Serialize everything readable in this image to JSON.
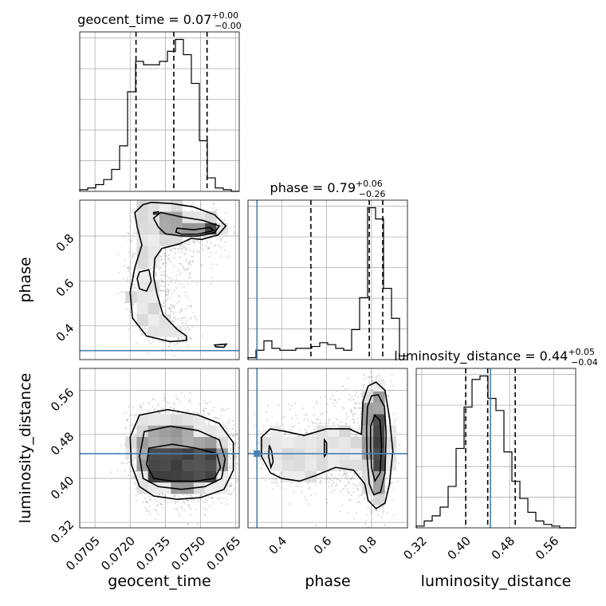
{
  "chart_data": {
    "type": "corner",
    "parameters": [
      "geocent_time",
      "phase",
      "luminosity_distance"
    ],
    "axis_labels": {
      "geocent_time": "geocent_time",
      "phase": "phase",
      "luminosity_distance": "luminosity_distance"
    },
    "truths": {
      "geocent_time": null,
      "phase": 0.29,
      "luminosity_distance": 0.445
    },
    "ranges": {
      "geocent_time": [
        0.06985,
        0.07665
      ],
      "phase": [
        0.25,
        0.96
      ],
      "luminosity_distance": [
        0.31,
        0.6
      ]
    },
    "ticks": {
      "geocent_time": {
        "values": [
          0.0705,
          0.072,
          0.0735,
          0.075,
          0.0765
        ],
        "labels": [
          "0.0705",
          "0.0720",
          "0.0735",
          "0.0750",
          "0.0765"
        ]
      },
      "phase": {
        "values": [
          0.4,
          0.6,
          0.8
        ],
        "labels": [
          "0.4",
          "0.6",
          "0.8"
        ]
      },
      "luminosity_distance": {
        "values": [
          0.32,
          0.4,
          0.48,
          0.56
        ],
        "labels": [
          "0.32",
          "0.40",
          "0.48",
          "0.56"
        ]
      }
    },
    "titles": {
      "geocent_time": {
        "prefix": "geocent_time = 0.07",
        "plus": "+0.00",
        "minus": "−0.00"
      },
      "phase": {
        "prefix": "phase = 0.79",
        "plus": "+0.06",
        "minus": "−0.26"
      },
      "luminosity_distance": {
        "prefix": "luminosity_distance = 0.44",
        "plus": "+0.05",
        "minus": "−0.04"
      }
    },
    "histograms": {
      "geocent_time": {
        "edges": [
          0.06985,
          0.07019,
          0.07053,
          0.07087,
          0.07121,
          0.07155,
          0.07189,
          0.07223,
          0.07257,
          0.07291,
          0.07325,
          0.07359,
          0.07393,
          0.07427,
          0.07461,
          0.07495,
          0.07529,
          0.07563,
          0.07597,
          0.07631,
          0.07665
        ],
        "counts": [
          1,
          2,
          4,
          7,
          13,
          27,
          59,
          77,
          75,
          75,
          77,
          83,
          90,
          81,
          64,
          30,
          8,
          2,
          1,
          0
        ],
        "quantiles": [
          0.07225,
          0.07386,
          0.07528
        ]
      },
      "phase": {
        "edges": [
          0.25,
          0.2855,
          0.321,
          0.3565,
          0.392,
          0.4275,
          0.463,
          0.4985,
          0.534,
          0.5695,
          0.605,
          0.6405,
          0.676,
          0.7115,
          0.747,
          0.7825,
          0.818,
          0.8535,
          0.889,
          0.9245,
          0.96
        ],
        "counts": [
          1,
          5,
          10,
          6,
          5,
          5,
          6,
          6,
          7,
          9,
          8,
          6,
          5,
          16,
          33,
          81,
          75,
          38,
          22,
          2
        ],
        "quantiles": [
          0.53,
          0.79,
          0.85
        ]
      },
      "luminosity_distance": {
        "edges": [
          0.31,
          0.3245,
          0.339,
          0.3535,
          0.368,
          0.3825,
          0.397,
          0.4115,
          0.426,
          0.4405,
          0.455,
          0.4695,
          0.484,
          0.4985,
          0.513,
          0.5275,
          0.542,
          0.5565,
          0.571,
          0.5855,
          0.6
        ],
        "counts": [
          1,
          4,
          7,
          12,
          24,
          46,
          70,
          86,
          88,
          75,
          68,
          44,
          27,
          17,
          9,
          4,
          2,
          1,
          0,
          0
        ],
        "quantiles": [
          0.4,
          0.44,
          0.49
        ]
      }
    },
    "contours": {
      "phase_vs_geocent_time": [
        [
          [
            0.0729,
            0.95
          ],
          [
            0.07375,
            0.945
          ],
          [
            0.0747,
            0.93
          ],
          [
            0.0756,
            0.895
          ],
          [
            0.07608,
            0.845
          ],
          [
            0.07575,
            0.805
          ],
          [
            0.07505,
            0.785
          ],
          [
            0.0746,
            0.79
          ],
          [
            0.0741,
            0.765
          ],
          [
            0.07335,
            0.745
          ],
          [
            0.07305,
            0.7
          ],
          [
            0.073,
            0.62
          ],
          [
            0.07315,
            0.54
          ],
          [
            0.0734,
            0.45
          ],
          [
            0.074,
            0.385
          ],
          [
            0.0744,
            0.355
          ],
          [
            0.0744,
            0.335
          ],
          [
            0.0737,
            0.33
          ],
          [
            0.0727,
            0.355
          ],
          [
            0.0721,
            0.435
          ],
          [
            0.072,
            0.55
          ],
          [
            0.0722,
            0.66
          ],
          [
            0.0725,
            0.76
          ],
          [
            0.0723,
            0.84
          ],
          [
            0.0722,
            0.905
          ],
          [
            0.07255,
            0.94
          ]
        ],
        [
          [
            0.0733,
            0.905
          ],
          [
            0.0742,
            0.885
          ],
          [
            0.0751,
            0.87
          ],
          [
            0.0758,
            0.845
          ],
          [
            0.0756,
            0.815
          ],
          [
            0.0749,
            0.8
          ],
          [
            0.0742,
            0.8
          ],
          [
            0.0735,
            0.81
          ],
          [
            0.0732,
            0.84
          ],
          [
            0.073,
            0.88
          ]
        ],
        [
          [
            0.074,
            0.835
          ],
          [
            0.0747,
            0.828
          ],
          [
            0.0754,
            0.838
          ],
          [
            0.07555,
            0.825
          ],
          [
            0.0749,
            0.808
          ],
          [
            0.0742,
            0.808
          ],
          [
            0.07395,
            0.818
          ]
        ],
        [
          [
            0.0724,
            0.64
          ],
          [
            0.0728,
            0.65
          ],
          [
            0.0729,
            0.6
          ],
          [
            0.0727,
            0.555
          ],
          [
            0.0724,
            0.565
          ],
          [
            0.0723,
            0.61
          ]
        ],
        [
          [
            0.073,
            0.905
          ],
          [
            0.0732,
            0.908
          ],
          [
            0.0732,
            0.899
          ],
          [
            0.073,
            0.898
          ]
        ],
        [
          [
            0.0756,
            0.315
          ],
          [
            0.0761,
            0.319
          ],
          [
            0.076,
            0.305
          ],
          [
            0.07565,
            0.307
          ]
        ]
      ],
      "luminosity_distance_vs_geocent_time": [
        [
          [
            0.0724,
            0.515
          ],
          [
            0.0736,
            0.525
          ],
          [
            0.0749,
            0.515
          ],
          [
            0.0758,
            0.5
          ],
          [
            0.0764,
            0.465
          ],
          [
            0.0764,
            0.415
          ],
          [
            0.076,
            0.38
          ],
          [
            0.075,
            0.365
          ],
          [
            0.074,
            0.362
          ],
          [
            0.073,
            0.368
          ],
          [
            0.0724,
            0.385
          ],
          [
            0.07205,
            0.425
          ],
          [
            0.072,
            0.475
          ]
        ],
        [
          [
            0.0726,
            0.485
          ],
          [
            0.0737,
            0.495
          ],
          [
            0.0749,
            0.487
          ],
          [
            0.0758,
            0.47
          ],
          [
            0.07605,
            0.435
          ],
          [
            0.0759,
            0.4
          ],
          [
            0.0752,
            0.385
          ],
          [
            0.0742,
            0.38
          ],
          [
            0.0732,
            0.385
          ],
          [
            0.07255,
            0.4
          ],
          [
            0.0724,
            0.44
          ]
        ],
        [
          [
            0.0728,
            0.455
          ],
          [
            0.0738,
            0.462
          ],
          [
            0.0748,
            0.455
          ],
          [
            0.0757,
            0.445
          ],
          [
            0.07585,
            0.42
          ],
          [
            0.0756,
            0.4
          ],
          [
            0.0748,
            0.395
          ],
          [
            0.0738,
            0.395
          ],
          [
            0.073,
            0.4
          ],
          [
            0.0727,
            0.425
          ]
        ]
      ],
      "luminosity_distance_vs_phase": [
        [
          [
            0.762,
            0.54
          ],
          [
            0.785,
            0.568
          ],
          [
            0.82,
            0.575
          ],
          [
            0.86,
            0.56
          ],
          [
            0.88,
            0.51
          ],
          [
            0.895,
            0.45
          ],
          [
            0.88,
            0.39
          ],
          [
            0.86,
            0.355
          ],
          [
            0.82,
            0.345
          ],
          [
            0.785,
            0.36
          ],
          [
            0.77,
            0.39
          ],
          [
            0.72,
            0.415
          ],
          [
            0.64,
            0.42
          ],
          [
            0.55,
            0.405
          ],
          [
            0.48,
            0.395
          ],
          [
            0.4,
            0.4
          ],
          [
            0.35,
            0.41
          ],
          [
            0.31,
            0.44
          ],
          [
            0.31,
            0.475
          ],
          [
            0.35,
            0.49
          ],
          [
            0.42,
            0.485
          ],
          [
            0.5,
            0.478
          ],
          [
            0.6,
            0.49
          ],
          [
            0.7,
            0.49
          ],
          [
            0.755,
            0.48
          ]
        ],
        [
          [
            0.782,
            0.53
          ],
          [
            0.8,
            0.55
          ],
          [
            0.83,
            0.552
          ],
          [
            0.858,
            0.53
          ],
          [
            0.865,
            0.48
          ],
          [
            0.86,
            0.41
          ],
          [
            0.84,
            0.375
          ],
          [
            0.81,
            0.37
          ],
          [
            0.79,
            0.39
          ],
          [
            0.78,
            0.44
          ],
          [
            0.778,
            0.49
          ]
        ],
        [
          [
            0.796,
            0.495
          ],
          [
            0.815,
            0.515
          ],
          [
            0.838,
            0.505
          ],
          [
            0.845,
            0.46
          ],
          [
            0.838,
            0.41
          ],
          [
            0.815,
            0.395
          ],
          [
            0.8,
            0.42
          ],
          [
            0.796,
            0.46
          ]
        ],
        [
          [
            0.345,
            0.46
          ],
          [
            0.355,
            0.45
          ],
          [
            0.362,
            0.43
          ],
          [
            0.352,
            0.42
          ],
          [
            0.342,
            0.44
          ]
        ],
        [
          [
            0.59,
            0.47
          ],
          [
            0.6,
            0.465
          ],
          [
            0.6,
            0.445
          ],
          [
            0.59,
            0.44
          ]
        ]
      ]
    }
  }
}
